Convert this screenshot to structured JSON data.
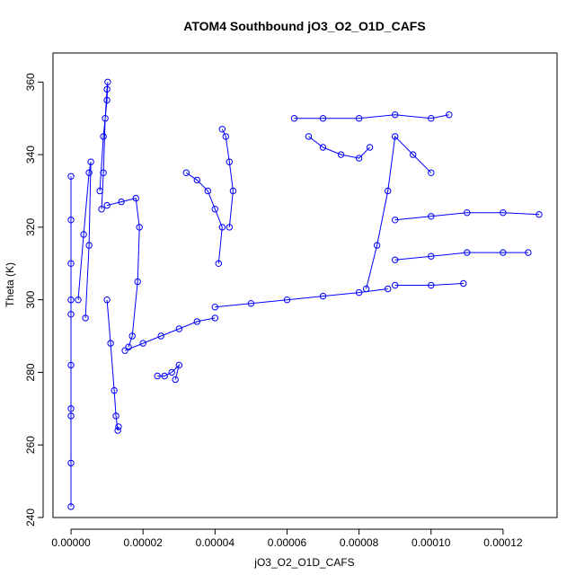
{
  "chart_data": {
    "type": "scatter",
    "title": "ATOM4 Southbound jO3_O2_O1D_CAFS",
    "xlabel": "jO3_O2_O1D_CAFS",
    "ylabel": "Theta (K)",
    "xlim": [
      -5e-06,
      0.000135
    ],
    "ylim": [
      240,
      368
    ],
    "x_ticks": [
      0,
      2e-05,
      4e-05,
      6e-05,
      8e-05,
      0.0001,
      0.00012
    ],
    "x_tick_labels": [
      "0.00000",
      "0.00002",
      "0.00004",
      "0.00006",
      "0.00008",
      "0.00010",
      "0.00012"
    ],
    "y_ticks": [
      240,
      260,
      280,
      300,
      320,
      340,
      360
    ],
    "y_tick_labels": [
      "240",
      "260",
      "280",
      "300",
      "320",
      "340",
      "360"
    ],
    "marker": "open-circle",
    "connected": true,
    "grid": false,
    "series": [
      {
        "color": "#0000ff",
        "segments": [
          {
            "x": [
              0,
              0,
              0,
              0,
              0,
              0,
              0,
              0,
              0,
              0
            ],
            "y": [
              243,
              255,
              268,
              282,
              296,
              310,
              322,
              334,
              300,
              270
            ]
          },
          {
            "x": [
              2e-06,
              3.5e-06,
              5e-06,
              5.5e-06,
              5e-06,
              4e-06
            ],
            "y": [
              300,
              318,
              335,
              338,
              315,
              295
            ]
          },
          {
            "x": [
              8e-06,
              9e-06,
              1e-05,
              1.02e-05,
              1e-05,
              9.5e-06,
              9e-06,
              8.5e-06
            ],
            "y": [
              330,
              345,
              355,
              360,
              358,
              350,
              335,
              325
            ]
          },
          {
            "x": [
              1e-05,
              1.1e-05,
              1.2e-05,
              1.25e-05,
              1.3e-05,
              1.32e-05
            ],
            "y": [
              300,
              288,
              275,
              268,
              264,
              265
            ]
          },
          {
            "x": [
              1e-05,
              1.4e-05,
              1.8e-05,
              1.9e-05,
              1.85e-05,
              1.7e-05,
              1.6e-05
            ],
            "y": [
              326,
              327,
              328,
              320,
              305,
              290,
              287
            ]
          },
          {
            "x": [
              2.4e-05,
              2.6e-05,
              2.8e-05,
              3e-05,
              2.9e-05
            ],
            "y": [
              279,
              279,
              280,
              282,
              278
            ]
          },
          {
            "x": [
              1.5e-05,
              2e-05,
              2.5e-05,
              3e-05,
              3.5e-05,
              4e-05
            ],
            "y": [
              286,
              288,
              290,
              292,
              294,
              295
            ]
          },
          {
            "x": [
              3.2e-05,
              3.5e-05,
              3.8e-05,
              4e-05,
              4.2e-05,
              4.1e-05
            ],
            "y": [
              335,
              333,
              330,
              325,
              320,
              310
            ]
          },
          {
            "x": [
              4.2e-05,
              4.3e-05,
              4.4e-05,
              4.5e-05,
              4.4e-05
            ],
            "y": [
              347,
              345,
              338,
              330,
              320
            ]
          },
          {
            "x": [
              4e-05,
              5e-05,
              6e-05,
              7e-05,
              8e-05,
              8.8e-05
            ],
            "y": [
              298,
              299,
              300,
              301,
              302,
              303
            ]
          },
          {
            "x": [
              6.2e-05,
              7e-05,
              8e-05,
              9e-05,
              0.0001,
              0.000105
            ],
            "y": [
              350,
              350,
              350,
              351,
              350,
              351
            ]
          },
          {
            "x": [
              6.6e-05,
              7e-05,
              7.5e-05,
              8e-05,
              8.3e-05
            ],
            "y": [
              345,
              342,
              340,
              339,
              342
            ]
          },
          {
            "x": [
              8.2e-05,
              8.5e-05,
              8.8e-05,
              9e-05,
              9.5e-05,
              0.0001
            ],
            "y": [
              303,
              315,
              330,
              345,
              340,
              335
            ]
          },
          {
            "x": [
              9e-05,
              0.0001,
              0.00011,
              0.00012,
              0.00013
            ],
            "y": [
              322,
              323,
              324,
              324,
              323.5
            ]
          },
          {
            "x": [
              9e-05,
              0.0001,
              0.00011,
              0.00012,
              0.000127
            ],
            "y": [
              311,
              312,
              313,
              313,
              313
            ]
          },
          {
            "x": [
              9e-05,
              0.0001,
              0.000109
            ],
            "y": [
              304,
              304,
              304.5
            ]
          }
        ]
      }
    ]
  }
}
